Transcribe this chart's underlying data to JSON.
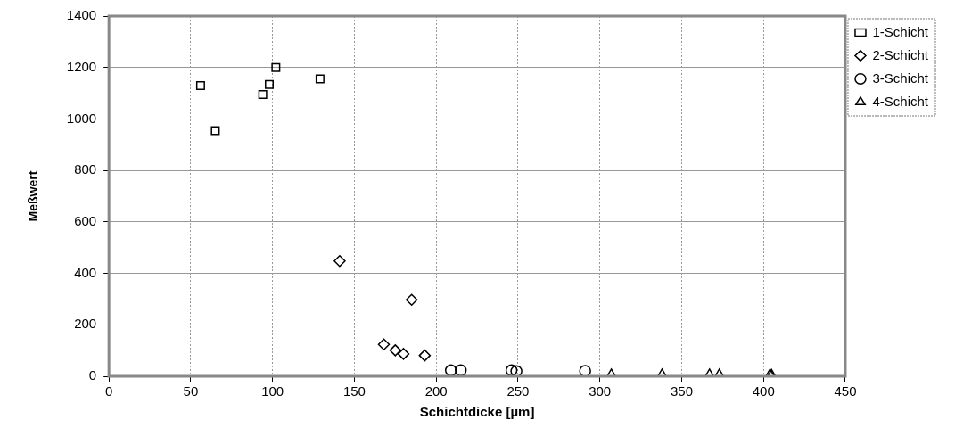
{
  "chart_data": {
    "type": "scatter",
    "xlabel": "Schichtdicke [µm]",
    "ylabel": "Meßwert",
    "xlim": [
      0,
      450
    ],
    "xticks": [
      0,
      50,
      100,
      150,
      200,
      250,
      300,
      350,
      400,
      450
    ],
    "ylim": [
      0,
      1400
    ],
    "yticks": [
      0,
      200,
      400,
      600,
      800,
      1000,
      1200,
      1400
    ],
    "grid": true,
    "legend": "right",
    "series": [
      {
        "name": "1-Schicht",
        "color": "#000000",
        "marker": "square",
        "x": [
          56,
          65,
          94,
          98,
          102,
          129
        ],
        "values": [
          1130,
          955,
          1095,
          1134,
          1200,
          1156
        ]
      },
      {
        "name": "2-Schicht",
        "color": "#000000",
        "marker": "diamond",
        "x": [
          141,
          168,
          175,
          180,
          185,
          193
        ],
        "values": [
          448,
          124,
          101,
          87,
          297,
          81
        ]
      },
      {
        "name": "3-Schicht",
        "color": "#000000",
        "marker": "circle",
        "x": [
          209,
          215,
          246,
          249,
          291
        ],
        "values": [
          23,
          23,
          23,
          20,
          21
        ]
      },
      {
        "name": "4-Schicht",
        "color": "#000000",
        "marker": "triangle",
        "x": [
          307,
          338,
          367,
          373,
          404,
          405
        ],
        "values": [
          7,
          7,
          7,
          7,
          7,
          5
        ]
      }
    ]
  }
}
